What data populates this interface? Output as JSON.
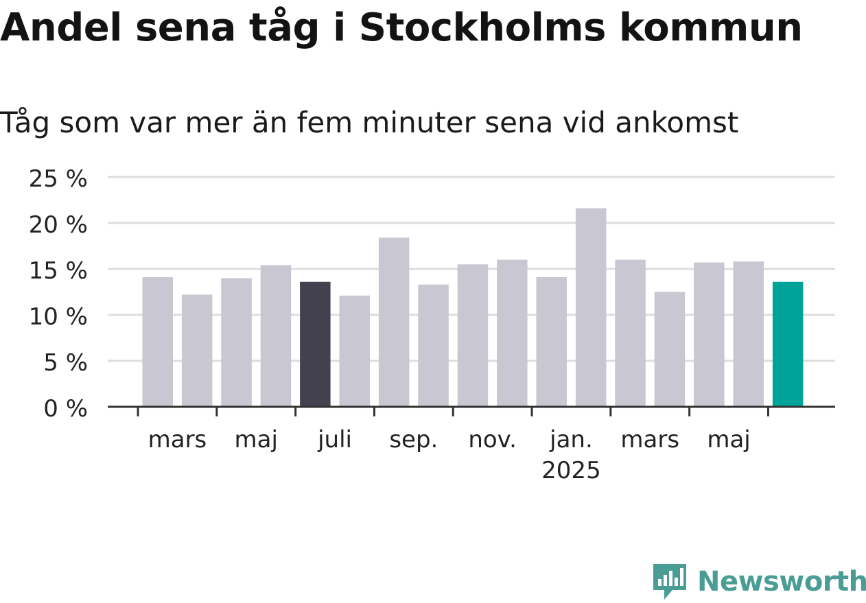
{
  "title": "Andel sena tåg i Stockholms kommun",
  "subtitle": "Tåg som var mer än fem minuter sena vid ankomst",
  "brand": "Newsworthy",
  "colors": {
    "bar_default": "#c8c7d2",
    "bar_highlight_dark": "#43414d",
    "bar_highlight_teal": "#00a398",
    "grid": "#dddddd",
    "axis": "#333333",
    "text": "#222222",
    "brand": "#4a9d95"
  },
  "chart_data": {
    "type": "bar",
    "ylim": [
      0,
      25
    ],
    "yticks": [
      {
        "value": 0,
        "label": "0 %"
      },
      {
        "value": 5,
        "label": "5 %"
      },
      {
        "value": 10,
        "label": "10 %"
      },
      {
        "value": 15,
        "label": "15 %"
      },
      {
        "value": 20,
        "label": "20 %"
      },
      {
        "value": 25,
        "label": "25 %"
      }
    ],
    "grid": true,
    "x_ticks": [
      {
        "bar_index": 1,
        "label": "mars",
        "sublabel": ""
      },
      {
        "bar_index": 3,
        "label": "maj",
        "sublabel": ""
      },
      {
        "bar_index": 5,
        "label": "juli",
        "sublabel": ""
      },
      {
        "bar_index": 7,
        "label": "sep.",
        "sublabel": ""
      },
      {
        "bar_index": 9,
        "label": "nov.",
        "sublabel": ""
      },
      {
        "bar_index": 11,
        "label": "jan.",
        "sublabel": "2025"
      },
      {
        "bar_index": 13,
        "label": "mars",
        "sublabel": ""
      },
      {
        "bar_index": 15,
        "label": "maj",
        "sublabel": ""
      }
    ],
    "values": [
      14.1,
      12.2,
      14.0,
      15.4,
      13.6,
      12.1,
      18.4,
      13.3,
      15.5,
      16.0,
      14.1,
      21.6,
      16.0,
      12.5,
      15.7,
      15.8,
      13.6
    ],
    "highlight": [
      {
        "bar_index": 4,
        "color_key": "bar_highlight_dark"
      },
      {
        "bar_index": 16,
        "color_key": "bar_highlight_teal"
      }
    ]
  }
}
